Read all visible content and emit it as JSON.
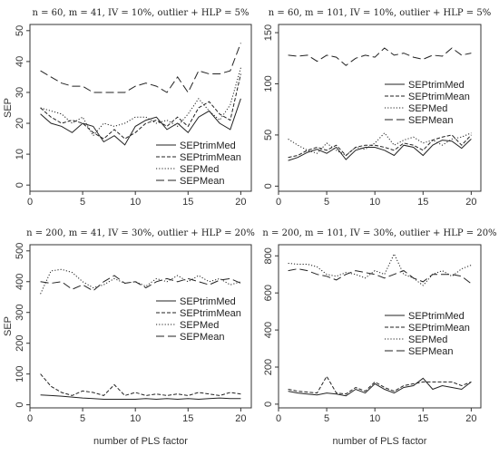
{
  "chart_data": [
    {
      "type": "line",
      "title": "n = 60, m = 41, IV = 10%, outlier + HLP = 5%",
      "xlabel": "",
      "ylabel": "SEP",
      "xlim": [
        0,
        21
      ],
      "ylim": [
        -2,
        52
      ],
      "xticks": [
        0,
        5,
        10,
        15,
        20
      ],
      "yticks": [
        0,
        10,
        20,
        30,
        40,
        50
      ],
      "legend_position": "bottom-right",
      "x": [
        1,
        2,
        3,
        4,
        5,
        6,
        7,
        8,
        9,
        10,
        11,
        12,
        13,
        14,
        15,
        16,
        17,
        18,
        19,
        20
      ],
      "series": [
        {
          "name": "SEPtrimMed",
          "style": "solid",
          "values": [
            23,
            20,
            19,
            17,
            20,
            19,
            14,
            16,
            13,
            19,
            21,
            22,
            18,
            20,
            17,
            22,
            24,
            20,
            18,
            28
          ]
        },
        {
          "name": "SEPtrimMean",
          "style": "short-dash",
          "values": [
            25,
            22,
            20,
            21,
            20,
            17,
            15,
            18,
            15,
            17,
            20,
            21,
            19,
            22,
            19,
            25,
            27,
            23,
            21,
            36
          ]
        },
        {
          "name": "SEPMed",
          "style": "dotted",
          "values": [
            25,
            24,
            23,
            20,
            22,
            16,
            20,
            19,
            20,
            22,
            22,
            20,
            21,
            19,
            23,
            28,
            24,
            21,
            26,
            38
          ]
        },
        {
          "name": "SEPMean",
          "style": "long-dash",
          "values": [
            37,
            35,
            33,
            32,
            32,
            30,
            30,
            30,
            30,
            32,
            33,
            32,
            30,
            35,
            30,
            37,
            36,
            36,
            37,
            46
          ]
        }
      ]
    },
    {
      "type": "line",
      "title": "n = 60, m = 101, IV = 10%, outlier + HLP = 5%",
      "xlabel": "",
      "ylabel": "",
      "xlim": [
        0,
        21
      ],
      "ylim": [
        -5,
        158
      ],
      "xticks": [
        0,
        5,
        10,
        15,
        20
      ],
      "yticks": [
        0,
        50,
        100,
        150
      ],
      "legend_position": "middle-right",
      "x": [
        1,
        2,
        3,
        4,
        5,
        6,
        7,
        8,
        9,
        10,
        11,
        12,
        13,
        14,
        15,
        16,
        17,
        18,
        19,
        20
      ],
      "series": [
        {
          "name": "SEPtrimMed",
          "style": "solid",
          "values": [
            25,
            28,
            33,
            36,
            32,
            38,
            26,
            35,
            38,
            38,
            35,
            30,
            40,
            38,
            30,
            40,
            45,
            44,
            37,
            46
          ]
        },
        {
          "name": "SEPtrimMean",
          "style": "short-dash",
          "values": [
            28,
            30,
            35,
            38,
            35,
            40,
            30,
            38,
            40,
            40,
            38,
            35,
            42,
            40,
            35,
            45,
            48,
            50,
            40,
            50
          ]
        },
        {
          "name": "SEPMed",
          "style": "dotted",
          "values": [
            46,
            40,
            35,
            32,
            42,
            35,
            30,
            38,
            36,
            42,
            52,
            40,
            45,
            48,
            42,
            45,
            40,
            46,
            48,
            52
          ]
        },
        {
          "name": "SEPMean",
          "style": "long-dash",
          "values": [
            128,
            127,
            128,
            122,
            128,
            126,
            118,
            125,
            128,
            126,
            135,
            128,
            130,
            126,
            124,
            128,
            127,
            135,
            128,
            130
          ]
        }
      ]
    },
    {
      "type": "line",
      "title": "n = 200, m = 41, IV = 30%, outlier + HLP = 20%",
      "xlabel": "number of PLS factor",
      "ylabel": "SEP",
      "xlim": [
        0,
        21
      ],
      "ylim": [
        -10,
        520
      ],
      "xticks": [
        0,
        5,
        10,
        15,
        20
      ],
      "yticks": [
        0,
        100,
        200,
        300,
        400,
        500
      ],
      "legend_position": "middle-right",
      "x": [
        1,
        2,
        3,
        4,
        5,
        6,
        7,
        8,
        9,
        10,
        11,
        12,
        13,
        14,
        15,
        16,
        17,
        18,
        19,
        20
      ],
      "series": [
        {
          "name": "SEPtrimMed",
          "style": "solid",
          "values": [
            32,
            30,
            28,
            25,
            22,
            20,
            18,
            18,
            18,
            18,
            20,
            18,
            20,
            18,
            20,
            18,
            20,
            22,
            20,
            20
          ]
        },
        {
          "name": "SEPtrimMean",
          "style": "short-dash",
          "values": [
            100,
            60,
            40,
            30,
            45,
            40,
            30,
            65,
            30,
            40,
            30,
            35,
            30,
            35,
            30,
            40,
            35,
            30,
            40,
            35
          ]
        },
        {
          "name": "SEPMed",
          "style": "dotted",
          "values": [
            360,
            435,
            440,
            430,
            400,
            380,
            390,
            410,
            395,
            400,
            385,
            410,
            400,
            420,
            400,
            420,
            400,
            410,
            390,
            400
          ]
        },
        {
          "name": "SEPMean",
          "style": "long-dash",
          "values": [
            400,
            395,
            400,
            375,
            390,
            370,
            400,
            420,
            395,
            400,
            380,
            400,
            410,
            400,
            410,
            400,
            390,
            405,
            410,
            395
          ]
        }
      ]
    },
    {
      "type": "line",
      "title": "n = 200, m = 101, IV = 30%, outlier + HLP = 20%",
      "xlabel": "number of PLS factor",
      "ylabel": "",
      "xlim": [
        0,
        21
      ],
      "ylim": [
        -20,
        860
      ],
      "xticks": [
        0,
        5,
        10,
        15,
        20
      ],
      "yticks": [
        0,
        200,
        400,
        600,
        800
      ],
      "legend_position": "middle-right",
      "x": [
        1,
        2,
        3,
        4,
        5,
        6,
        7,
        8,
        9,
        10,
        11,
        12,
        13,
        14,
        15,
        16,
        17,
        18,
        19,
        20
      ],
      "series": [
        {
          "name": "SEPtrimMed",
          "style": "solid",
          "values": [
            70,
            60,
            55,
            50,
            60,
            55,
            45,
            80,
            60,
            110,
            80,
            60,
            90,
            100,
            140,
            80,
            100,
            90,
            80,
            120
          ]
        },
        {
          "name": "SEPtrimMean",
          "style": "short-dash",
          "values": [
            80,
            70,
            65,
            60,
            150,
            60,
            55,
            90,
            70,
            120,
            90,
            70,
            100,
            110,
            120,
            120,
            120,
            120,
            100,
            120
          ]
        },
        {
          "name": "SEPMed",
          "style": "dotted",
          "values": [
            760,
            755,
            755,
            740,
            700,
            690,
            710,
            700,
            680,
            720,
            700,
            810,
            700,
            680,
            640,
            700,
            720,
            690,
            730,
            750
          ]
        },
        {
          "name": "SEPMean",
          "style": "long-dash",
          "values": [
            720,
            730,
            720,
            700,
            690,
            670,
            700,
            720,
            710,
            700,
            680,
            700,
            720,
            680,
            660,
            700,
            700,
            700,
            690,
            650
          ]
        }
      ]
    }
  ]
}
